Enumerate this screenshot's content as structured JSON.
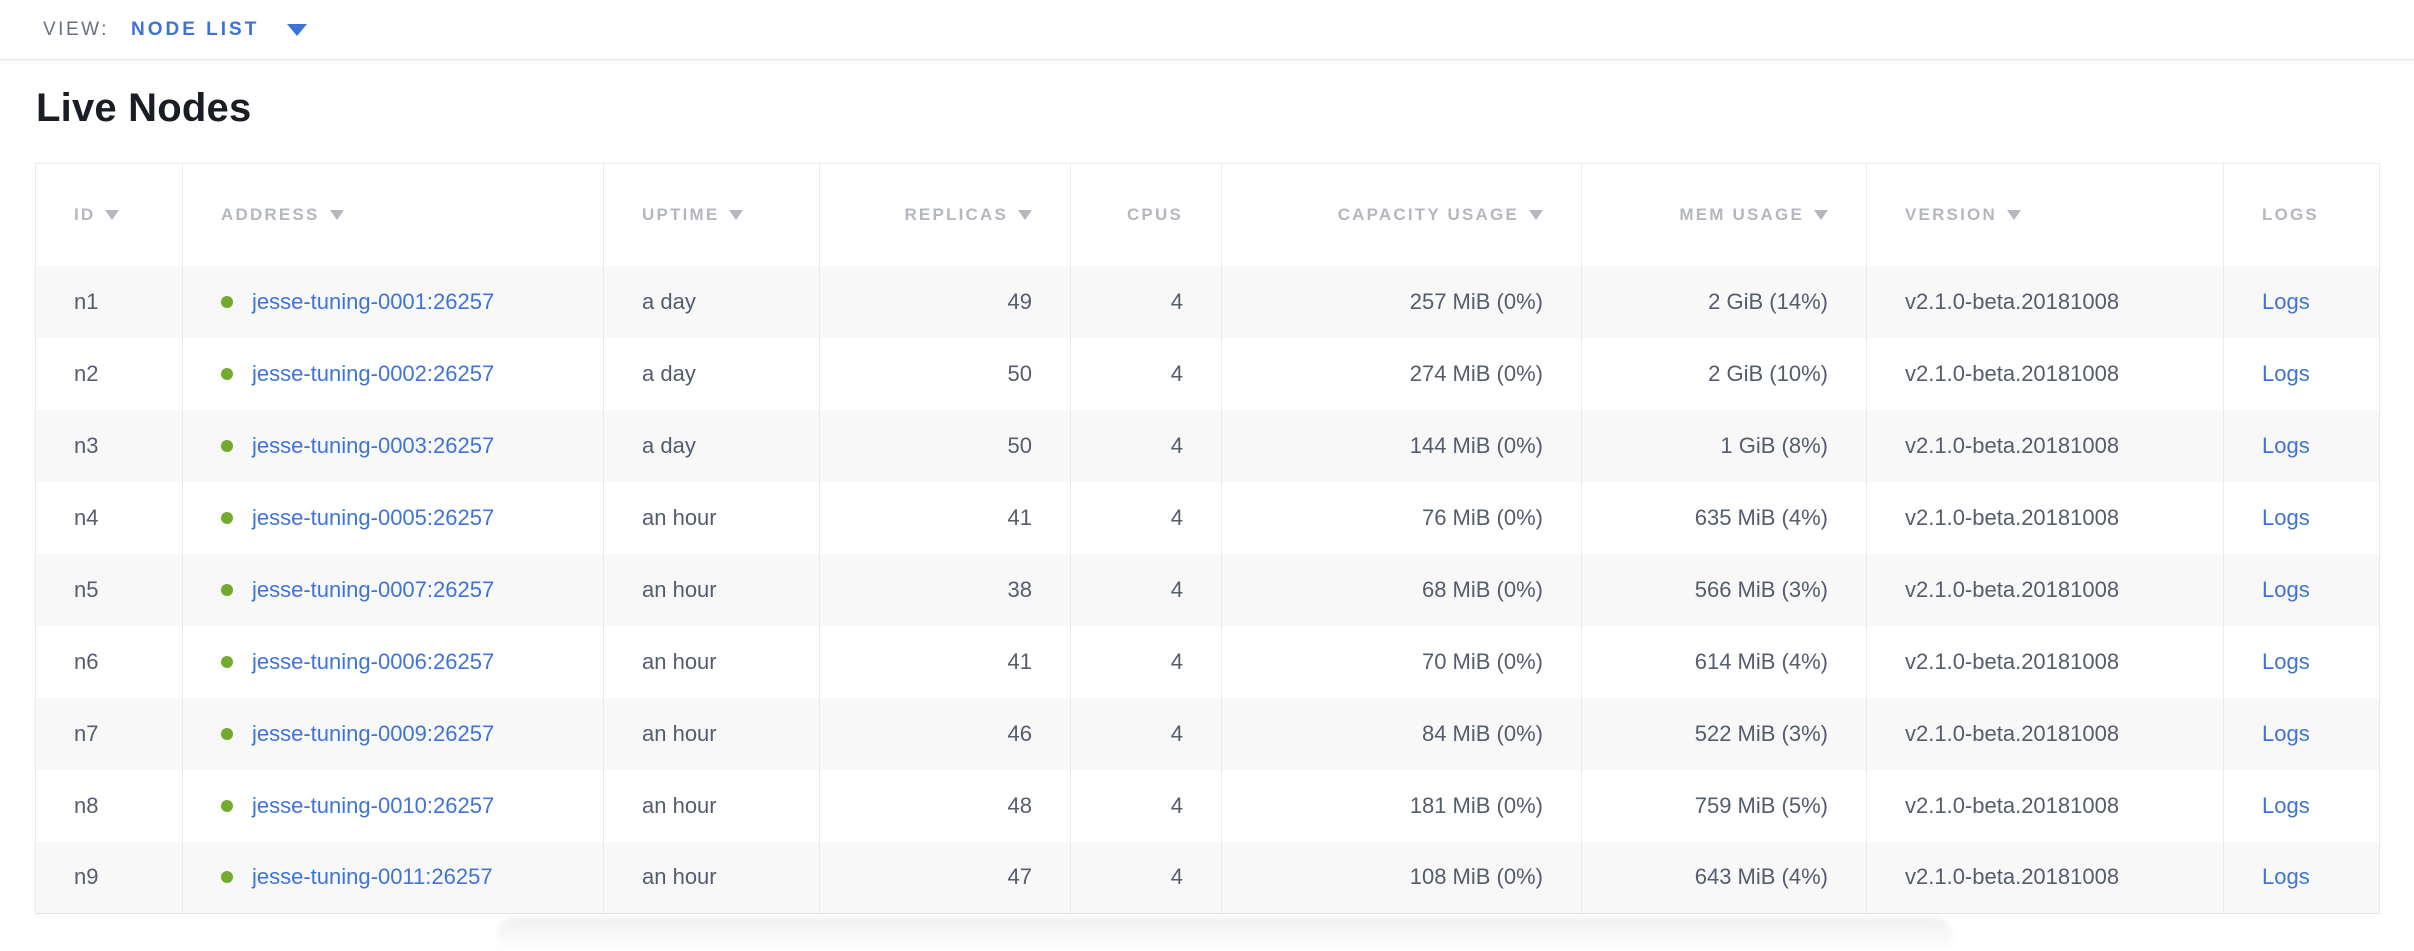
{
  "view_bar": {
    "label": "VIEW:",
    "selected_view": "NODE LIST"
  },
  "page": {
    "title": "Live Nodes"
  },
  "table": {
    "columns": [
      {
        "key": "id",
        "label": "ID",
        "sortable": true,
        "align": "left"
      },
      {
        "key": "address",
        "label": "ADDRESS",
        "sortable": true,
        "align": "left"
      },
      {
        "key": "uptime",
        "label": "UPTIME",
        "sortable": true,
        "align": "left"
      },
      {
        "key": "replicas",
        "label": "REPLICAS",
        "sortable": true,
        "align": "right"
      },
      {
        "key": "cpus",
        "label": "CPUS",
        "sortable": false,
        "align": "right"
      },
      {
        "key": "capacity",
        "label": "CAPACITY USAGE",
        "sortable": true,
        "align": "right"
      },
      {
        "key": "mem",
        "label": "MEM USAGE",
        "sortable": true,
        "align": "right"
      },
      {
        "key": "version",
        "label": "VERSION",
        "sortable": true,
        "align": "left"
      },
      {
        "key": "logs",
        "label": "LOGS",
        "sortable": false,
        "align": "left"
      }
    ],
    "rows": [
      {
        "id": "n1",
        "address": "jesse-tuning-0001:26257",
        "uptime": "a day",
        "replicas": "49",
        "cpus": "4",
        "capacity": "257 MiB (0%)",
        "mem": "2 GiB (14%)",
        "version": "v2.1.0-beta.20181008",
        "logs": "Logs"
      },
      {
        "id": "n2",
        "address": "jesse-tuning-0002:26257",
        "uptime": "a day",
        "replicas": "50",
        "cpus": "4",
        "capacity": "274 MiB (0%)",
        "mem": "2 GiB (10%)",
        "version": "v2.1.0-beta.20181008",
        "logs": "Logs"
      },
      {
        "id": "n3",
        "address": "jesse-tuning-0003:26257",
        "uptime": "a day",
        "replicas": "50",
        "cpus": "4",
        "capacity": "144 MiB (0%)",
        "mem": "1 GiB (8%)",
        "version": "v2.1.0-beta.20181008",
        "logs": "Logs"
      },
      {
        "id": "n4",
        "address": "jesse-tuning-0005:26257",
        "uptime": "an hour",
        "replicas": "41",
        "cpus": "4",
        "capacity": "76 MiB (0%)",
        "mem": "635 MiB (4%)",
        "version": "v2.1.0-beta.20181008",
        "logs": "Logs"
      },
      {
        "id": "n5",
        "address": "jesse-tuning-0007:26257",
        "uptime": "an hour",
        "replicas": "38",
        "cpus": "4",
        "capacity": "68 MiB (0%)",
        "mem": "566 MiB (3%)",
        "version": "v2.1.0-beta.20181008",
        "logs": "Logs"
      },
      {
        "id": "n6",
        "address": "jesse-tuning-0006:26257",
        "uptime": "an hour",
        "replicas": "41",
        "cpus": "4",
        "capacity": "70 MiB (0%)",
        "mem": "614 MiB (4%)",
        "version": "v2.1.0-beta.20181008",
        "logs": "Logs"
      },
      {
        "id": "n7",
        "address": "jesse-tuning-0009:26257",
        "uptime": "an hour",
        "replicas": "46",
        "cpus": "4",
        "capacity": "84 MiB (0%)",
        "mem": "522 MiB (3%)",
        "version": "v2.1.0-beta.20181008",
        "logs": "Logs"
      },
      {
        "id": "n8",
        "address": "jesse-tuning-0010:26257",
        "uptime": "an hour",
        "replicas": "48",
        "cpus": "4",
        "capacity": "181 MiB (0%)",
        "mem": "759 MiB (5%)",
        "version": "v2.1.0-beta.20181008",
        "logs": "Logs"
      },
      {
        "id": "n9",
        "address": "jesse-tuning-0011:26257",
        "uptime": "an hour",
        "replicas": "47",
        "cpus": "4",
        "capacity": "108 MiB (0%)",
        "mem": "643 MiB (4%)",
        "version": "v2.1.0-beta.20181008",
        "logs": "Logs"
      }
    ]
  },
  "icons": {
    "view_caret": "caret-down-icon",
    "sort_indicator": "sort-descending-icon",
    "node_status": "live-status-dot"
  },
  "colors": {
    "link_blue": "#3e74d9",
    "view_blue": "#3c73d6",
    "live_dot_green": "#71ab2f",
    "header_text_gray": "#b4b7bd",
    "cell_text": "#545c6d",
    "title_text": "#1a1d23",
    "row_alt_bg": "#f8f8f8",
    "table_border": "#e9eaeb"
  }
}
